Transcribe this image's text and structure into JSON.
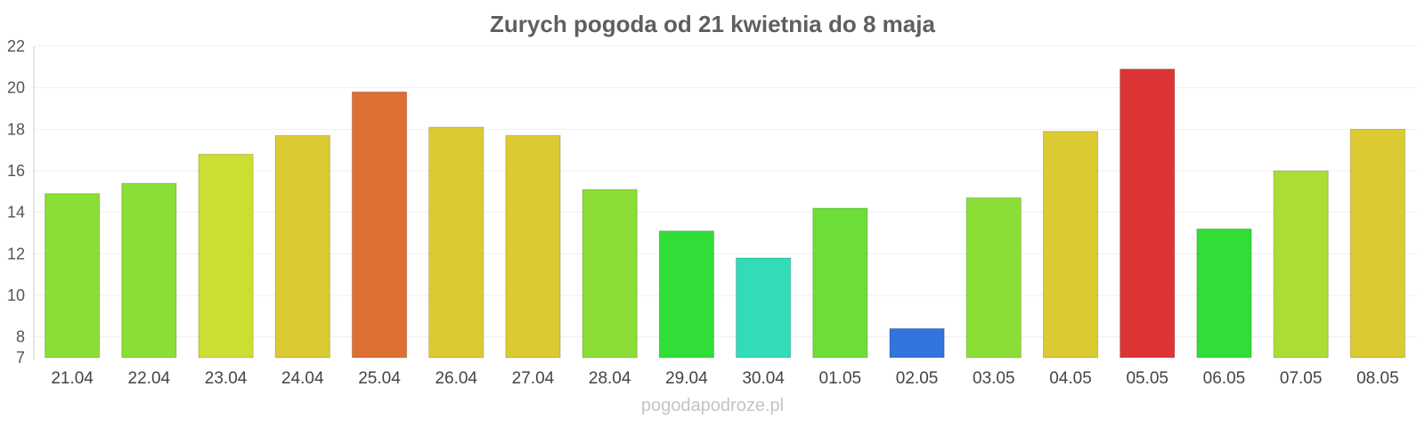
{
  "credit": "pogodapodroze.pl",
  "chart_data": {
    "type": "bar",
    "title": "Zurych pogoda od 21 kwietnia do 8 maja",
    "xlabel": "",
    "ylabel": "",
    "ylim": [
      7,
      22
    ],
    "yticks": [
      7,
      8,
      10,
      12,
      14,
      16,
      18,
      20,
      22
    ],
    "grid": true,
    "categories": [
      "21.04",
      "22.04",
      "23.04",
      "24.04",
      "25.04",
      "26.04",
      "27.04",
      "28.04",
      "29.04",
      "30.04",
      "01.05",
      "02.05",
      "03.05",
      "04.05",
      "05.05",
      "06.05",
      "07.05",
      "08.05"
    ],
    "values": [
      14.9,
      15.4,
      16.8,
      17.7,
      19.8,
      18.1,
      17.7,
      15.1,
      13.1,
      11.8,
      14.2,
      8.4,
      14.7,
      17.9,
      20.9,
      13.2,
      16.0,
      18.0
    ],
    "colors": [
      "#8ade35",
      "#8ade35",
      "#ccde31",
      "#dbca31",
      "#dd6f33",
      "#dbca31",
      "#dbca31",
      "#8ade35",
      "#31dd37",
      "#33dbb6",
      "#6cde37",
      "#3174db",
      "#8ade35",
      "#dbca31",
      "#dd3535",
      "#31dd37",
      "#addd34",
      "#dbca31"
    ]
  }
}
